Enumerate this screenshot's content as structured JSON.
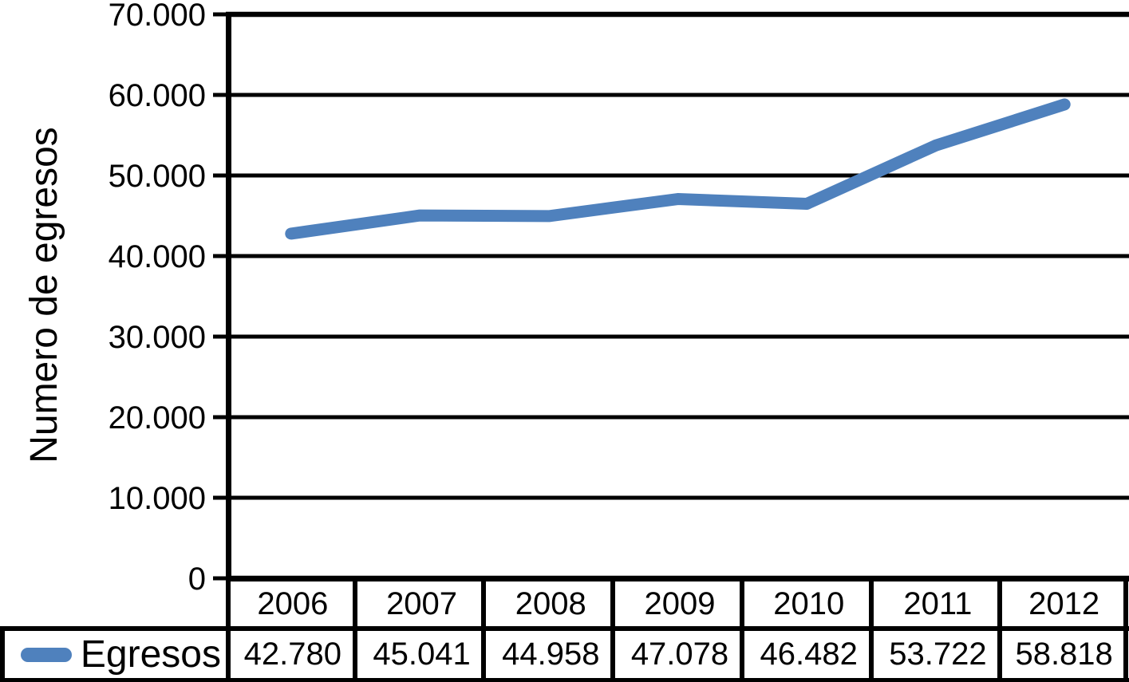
{
  "chart_data": {
    "type": "line",
    "title": "",
    "xlabel": "",
    "ylabel": "Numero de egresos",
    "categories": [
      "2006",
      "2007",
      "2008",
      "2009",
      "2010",
      "2011",
      "2012"
    ],
    "series": [
      {
        "name": "Egresos",
        "values": [
          42780,
          45041,
          44958,
          47078,
          46482,
          53722,
          58818
        ],
        "display_values": [
          "42.780",
          "45.041",
          "44.958",
          "47.078",
          "46.482",
          "53.722",
          "58.818"
        ],
        "color": "#4F81BD"
      }
    ],
    "ylim": [
      0,
      70000
    ],
    "yticks": [
      {
        "value": 0,
        "label": "0"
      },
      {
        "value": 10000,
        "label": "10.000"
      },
      {
        "value": 20000,
        "label": "20.000"
      },
      {
        "value": 30000,
        "label": "30.000"
      },
      {
        "value": 40000,
        "label": "40.000"
      },
      {
        "value": 50000,
        "label": "50.000"
      },
      {
        "value": 60000,
        "label": "60.000"
      },
      {
        "value": 70000,
        "label": "70.000"
      }
    ],
    "grid": true,
    "legend_position": "table-row-header",
    "colors": {
      "line": "#4F81BD",
      "axis": "#000000",
      "gridline": "#000000",
      "background": "#FFFFFF",
      "text": "#000000"
    }
  }
}
